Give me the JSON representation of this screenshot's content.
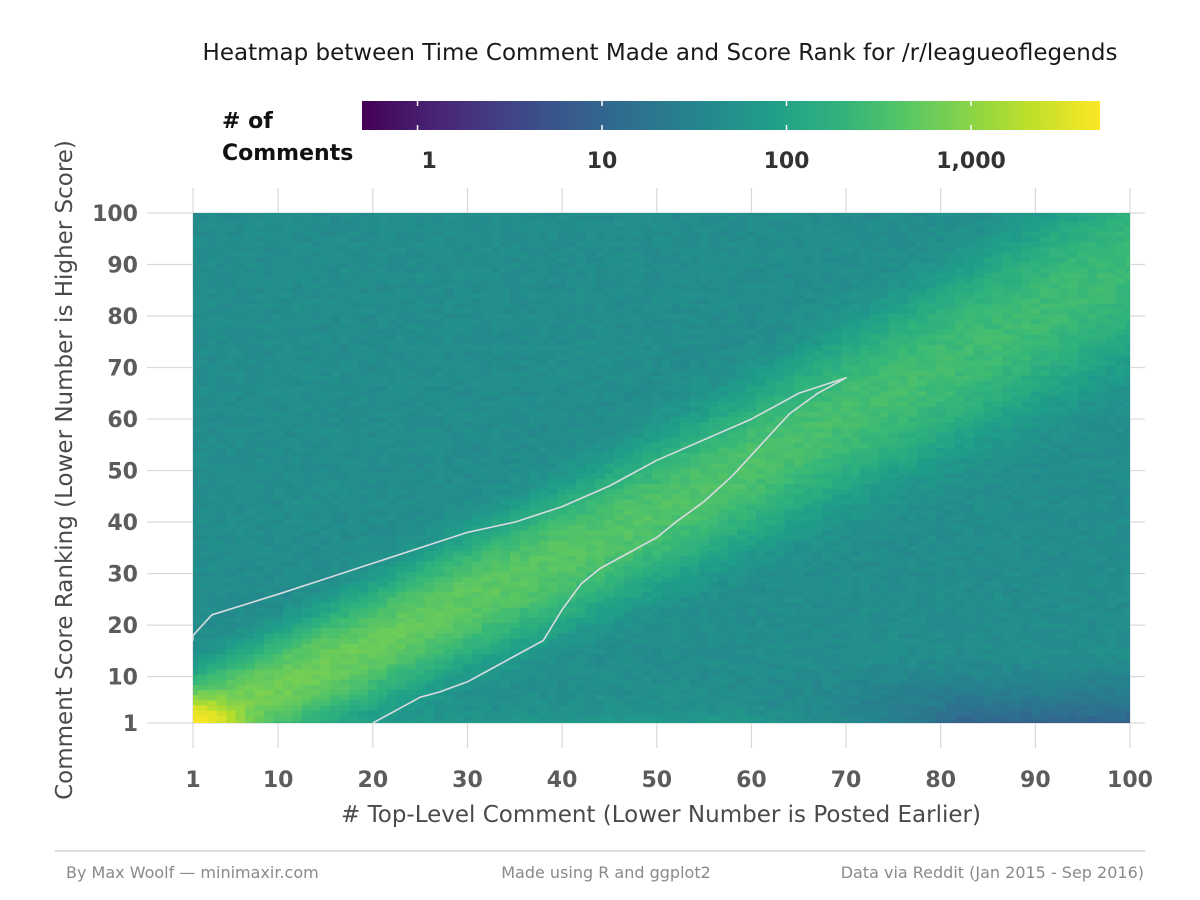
{
  "chart_data": {
    "type": "heatmap",
    "title": "Heatmap between Time Comment Made and Score Rank for /r/leagueoflegends",
    "xlabel": "# Top-Level Comment (Lower Number is Posted Earlier)",
    "ylabel": "Comment Score Ranking (Lower Number is Higher Score)",
    "xlim": [
      1,
      100
    ],
    "ylim": [
      1,
      100
    ],
    "x_ticks": [
      1,
      10,
      20,
      30,
      40,
      50,
      60,
      70,
      80,
      90,
      100
    ],
    "y_ticks": [
      1,
      10,
      20,
      30,
      40,
      50,
      60,
      70,
      80,
      90,
      100
    ],
    "x_tick_labels": [
      "1",
      "10",
      "20",
      "30",
      "40",
      "50",
      "60",
      "70",
      "80",
      "90",
      "100"
    ],
    "y_tick_labels": [
      "1",
      "10",
      "20",
      "30",
      "40",
      "50",
      "60",
      "70",
      "80",
      "90",
      "100"
    ],
    "colorscale": "viridis",
    "color_scale_log": true,
    "color_range": [
      0.5,
      5000
    ],
    "color_ticks": [
      1,
      10,
      100,
      1000
    ],
    "color_tick_labels": [
      "1",
      "10",
      "100",
      "1,000"
    ],
    "legend_title_lines": [
      "# of",
      "Comments"
    ],
    "legend_position": "top",
    "grid": true,
    "peak": {
      "x": 1,
      "y": 1,
      "count": 4500
    },
    "diagonal_ridge": {
      "x": [
        1,
        10,
        20,
        30,
        40,
        50,
        60,
        70,
        80,
        90,
        100
      ],
      "y": [
        1,
        8,
        16,
        25,
        33,
        42,
        51,
        61,
        70,
        80,
        90
      ]
    },
    "contour": {
      "level": 300,
      "upper_edge": [
        [
          1,
          17
        ],
        [
          1,
          18
        ],
        [
          3,
          22
        ],
        [
          10,
          26
        ],
        [
          15,
          29
        ],
        [
          20,
          32
        ],
        [
          25,
          35
        ],
        [
          30,
          38
        ],
        [
          35,
          40
        ],
        [
          40,
          43
        ],
        [
          45,
          47
        ],
        [
          50,
          52
        ],
        [
          55,
          56
        ],
        [
          60,
          60
        ],
        [
          65,
          65
        ],
        [
          70,
          68
        ]
      ],
      "lower_edge": [
        [
          70,
          68
        ],
        [
          67,
          65
        ],
        [
          64,
          61
        ],
        [
          61,
          55
        ],
        [
          58,
          49
        ],
        [
          55,
          44
        ],
        [
          52,
          40
        ],
        [
          50,
          37
        ],
        [
          47,
          34
        ],
        [
          44,
          31
        ],
        [
          42,
          28
        ],
        [
          40,
          23
        ],
        [
          38,
          17
        ],
        [
          35,
          14
        ],
        [
          32,
          11
        ],
        [
          30,
          9
        ],
        [
          27,
          7
        ],
        [
          25,
          6
        ],
        [
          22,
          3
        ],
        [
          20,
          1
        ]
      ]
    },
    "low_region": {
      "x_range": [
        57,
        100
      ],
      "note": "lowest counts"
    }
  },
  "footer": {
    "author": "By Max Woolf — minimaxir.com",
    "tool": "Made using R and ggplot2",
    "source": "Data via Reddit (Jan 2015 - Sep 2016)"
  },
  "colors": {
    "gridline": "#d9d9d9",
    "contour": "#d8dbe0",
    "footer_rule": "#bbbbbb"
  }
}
